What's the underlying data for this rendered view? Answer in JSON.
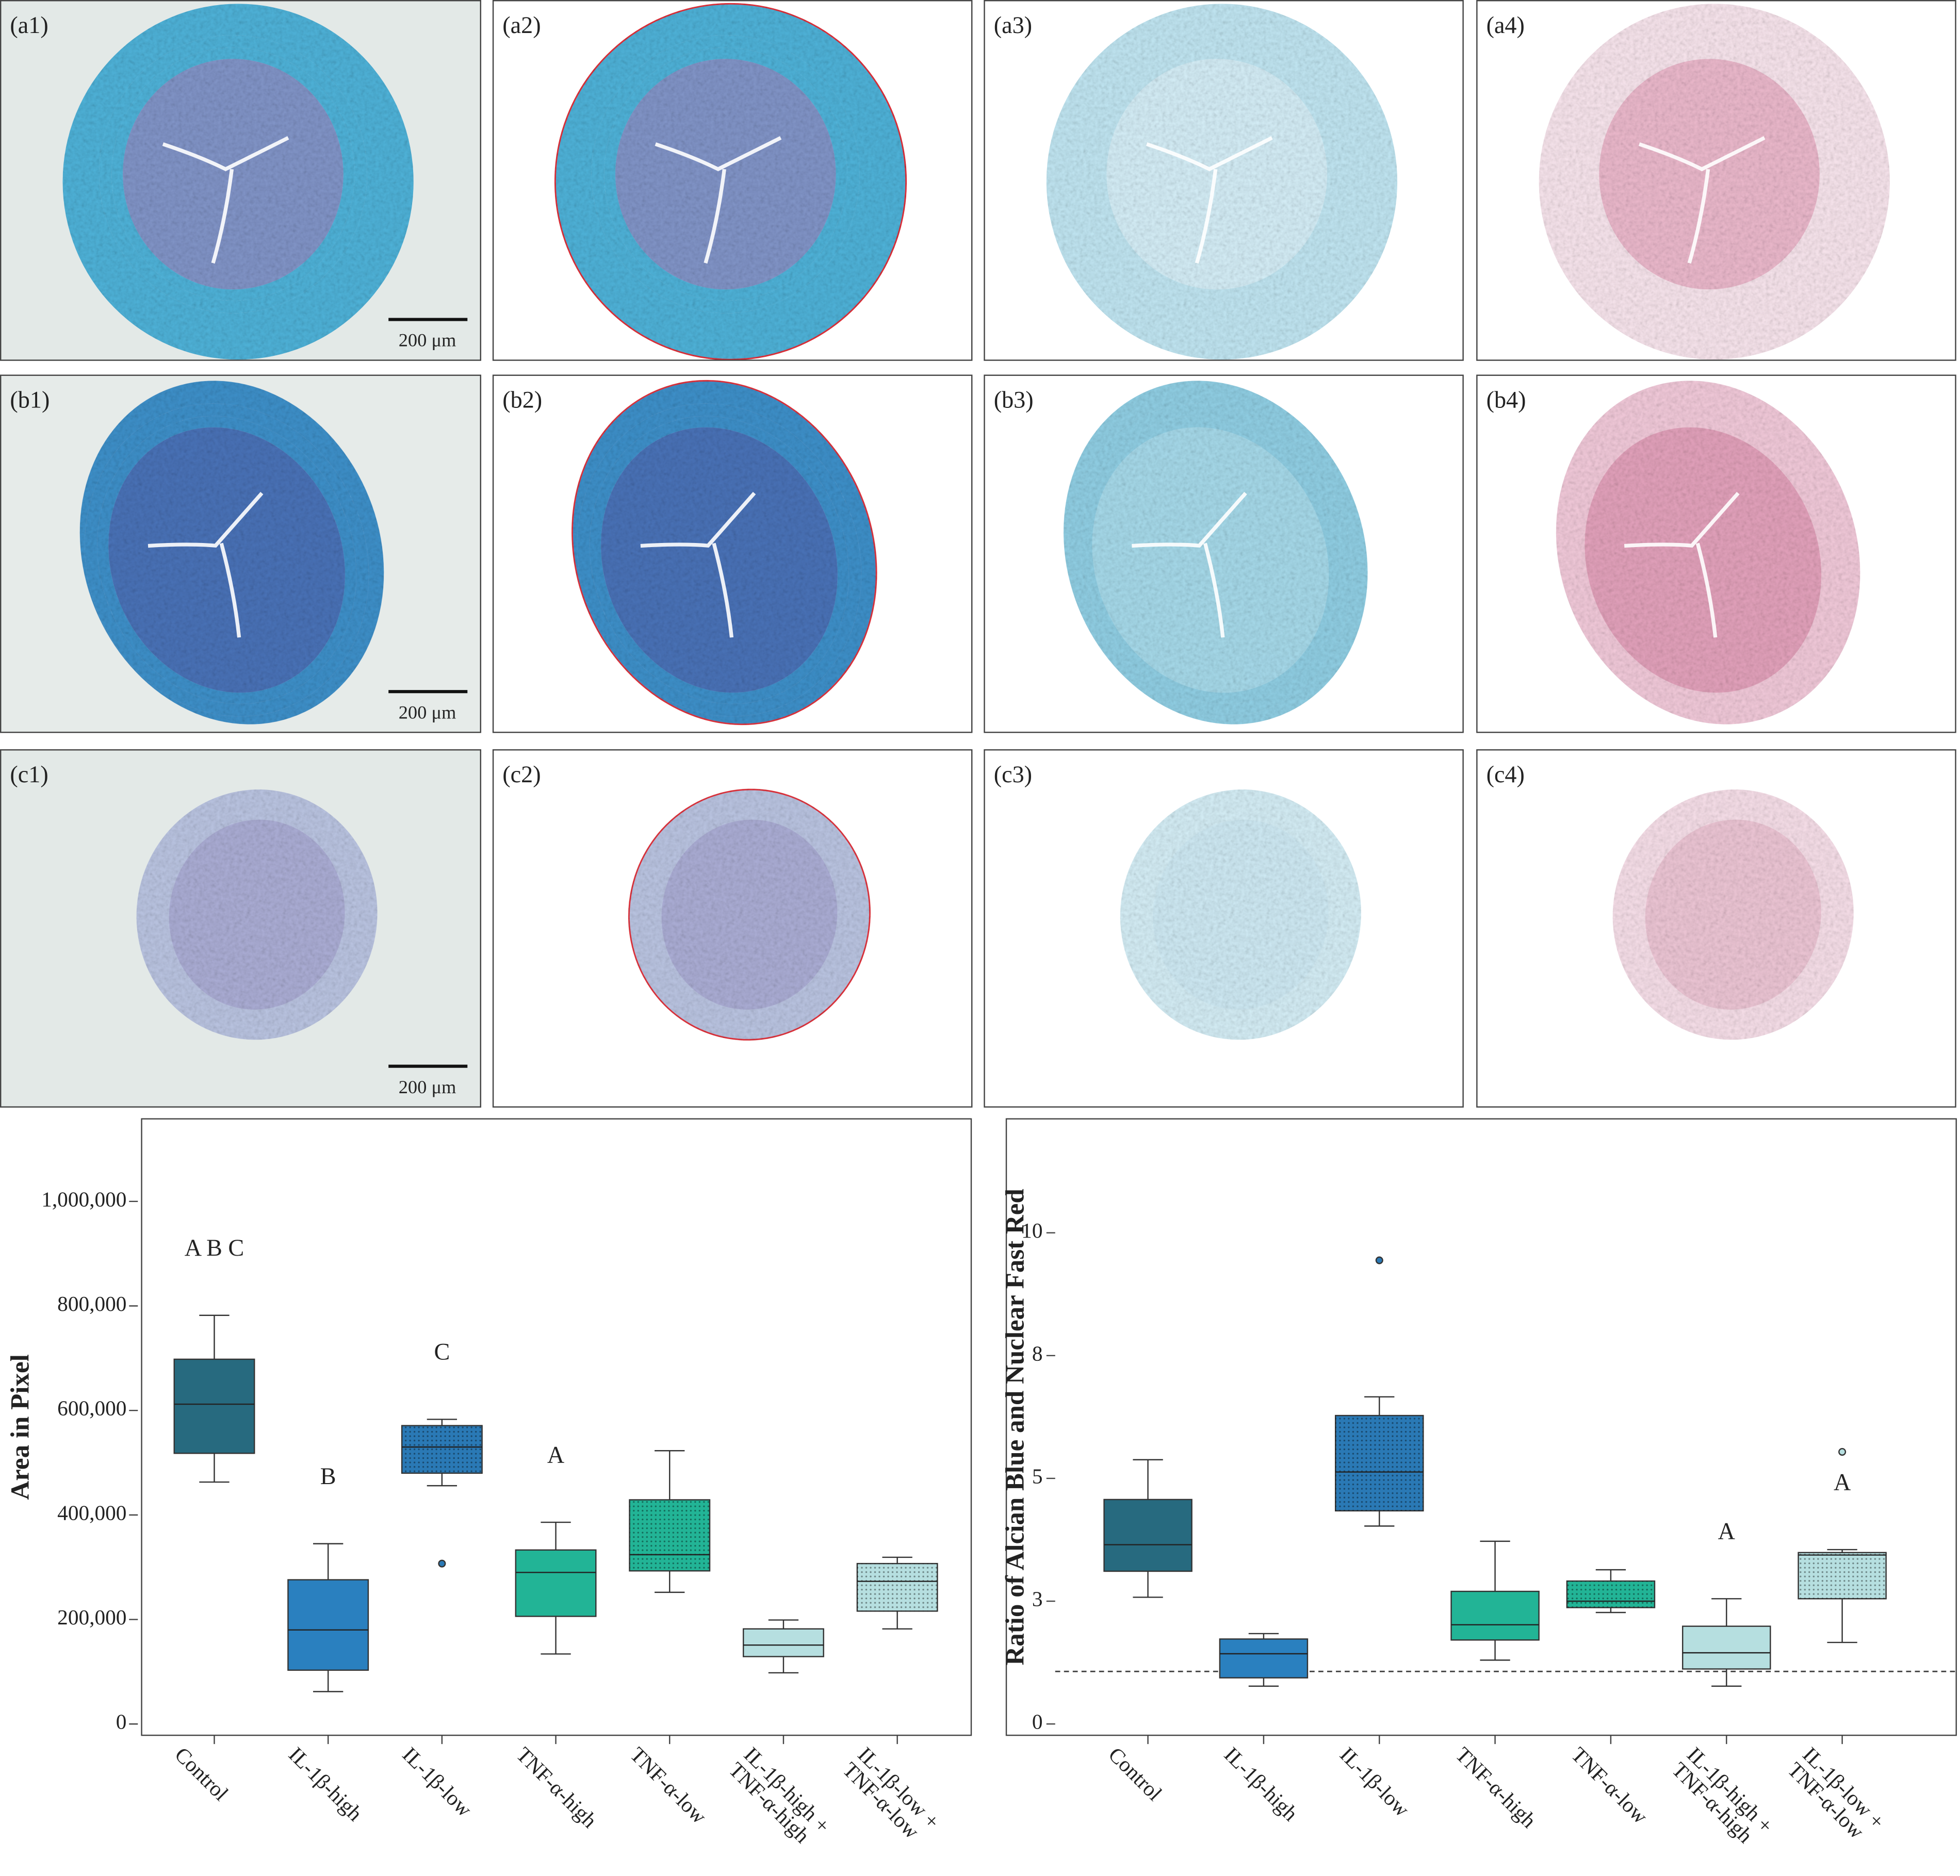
{
  "panels": [
    {
      "label": "(a1)",
      "scale_bar": "200 μm"
    },
    {
      "label": "(a2)"
    },
    {
      "label": "(a3)"
    },
    {
      "label": "(a4)"
    },
    {
      "label": "(b1)",
      "scale_bar": "200 μm"
    },
    {
      "label": "(b2)"
    },
    {
      "label": "(b3)"
    },
    {
      "label": "(b4)"
    },
    {
      "label": "(c1)",
      "scale_bar": "200 μm"
    },
    {
      "label": "(c2)"
    },
    {
      "label": "(c3)"
    },
    {
      "label": "(c4)"
    }
  ],
  "chart_data": [
    {
      "type": "box",
      "ylabel": "Area in Pixel",
      "categories": [
        "Control",
        "IL-1β-high",
        "IL-1β-low",
        "TNF-α-high",
        "TNF-α-low",
        "IL-1β-high + TNF-α-high",
        "IL-1β-low + TNF-α-low"
      ],
      "values": [
        {
          "min": 463000,
          "q1": 518000,
          "median": 612000,
          "q3": 698000,
          "max": 782000,
          "outliers": []
        },
        {
          "min": 62000,
          "q1": 103000,
          "median": 180000,
          "q3": 276000,
          "max": 345000,
          "outliers": []
        },
        {
          "min": 456000,
          "q1": 480000,
          "median": 530000,
          "q3": 571000,
          "max": 583000,
          "outliers": [
            307000
          ]
        },
        {
          "min": 134000,
          "q1": 206000,
          "median": 290000,
          "q3": 333000,
          "max": 386000,
          "outliers": []
        },
        {
          "min": 252000,
          "q1": 293000,
          "median": 324000,
          "q3": 429000,
          "max": 523000,
          "outliers": []
        },
        {
          "min": 98000,
          "q1": 129000,
          "median": 151000,
          "q3": 182000,
          "max": 199000,
          "outliers": []
        },
        {
          "min": 182000,
          "q1": 216000,
          "median": 273000,
          "q3": 307000,
          "max": 319000,
          "outliers": []
        }
      ],
      "colors": [
        "#276a7f",
        "#2a80bf",
        "#2a79b5",
        "#22b496",
        "#22b496",
        "#b6dfe0",
        "#b6dfe0"
      ],
      "patterned": [
        false,
        false,
        true,
        false,
        true,
        false,
        true
      ],
      "ylim": [
        -21600,
        1158000
      ],
      "yticks": [
        0,
        {
          "value": 200000,
          "label": "200,000"
        },
        {
          "value": 400000,
          "label": "400,000"
        },
        {
          "value": 600000,
          "label": "600,000"
        },
        {
          "value": 800000,
          "label": "800,000"
        },
        {
          "value": 1000000,
          "label": "1,000,000"
        }
      ],
      "annotations": [
        {
          "text": "A B C",
          "category": "Control"
        },
        {
          "text": "B",
          "category": "IL-1β-high"
        },
        {
          "text": "C",
          "category": "IL-1β-low"
        },
        {
          "text": "A",
          "category": "TNF-α-high"
        }
      ]
    },
    {
      "type": "box",
      "ylabel": "Ratio of Alcian Blue and Nuclear Fast Red",
      "categories": [
        "Control",
        "IL-1β-high",
        "IL-1β-low",
        "TNF-α-high",
        "TNF-α-low",
        "IL-1β-high + TNF-α-high",
        "IL-1β-low + TNF-α-low"
      ],
      "values": [
        {
          "min": 2.58,
          "q1": 3.11,
          "median": 3.65,
          "q3": 4.57,
          "max": 5.38,
          "outliers": []
        },
        {
          "min": 0.77,
          "q1": 0.94,
          "median": 1.43,
          "q3": 1.73,
          "max": 1.84,
          "outliers": []
        },
        {
          "min": 4.03,
          "q1": 4.34,
          "median": 5.13,
          "q3": 6.28,
          "max": 6.66,
          "outliers": [
            9.44
          ]
        },
        {
          "min": 1.3,
          "q1": 1.71,
          "median": 2.02,
          "q3": 2.7,
          "max": 3.72,
          "outliers": []
        },
        {
          "min": 2.27,
          "q1": 2.37,
          "median": 2.5,
          "q3": 2.91,
          "max": 3.14,
          "outliers": []
        },
        {
          "min": 0.77,
          "q1": 1.12,
          "median": 1.45,
          "q3": 1.99,
          "max": 2.55,
          "outliers": []
        },
        {
          "min": 1.66,
          "q1": 2.55,
          "median": 3.44,
          "q3": 3.49,
          "max": 3.55,
          "outliers": [
            5.54
          ]
        }
      ],
      "colors": [
        "#276a7f",
        "#2a80bf",
        "#2a79b5",
        "#22b496",
        "#22b496",
        "#b6dfe0",
        "#b6dfe0"
      ],
      "patterned": [
        false,
        false,
        true,
        false,
        true,
        false,
        true
      ],
      "ylim": [
        -0.23,
        12.32
      ],
      "yticks": [
        0,
        {
          "value": 2.5,
          "label": "3"
        },
        5,
        {
          "value": 7.5,
          "label": "8"
        },
        10
      ],
      "reference_line": 1.07,
      "annotations": [
        {
          "text": "A",
          "category": "IL-1β-high + TNF-α-high"
        },
        {
          "text": "A",
          "category": "IL-1β-low + TNF-α-low"
        }
      ]
    }
  ]
}
